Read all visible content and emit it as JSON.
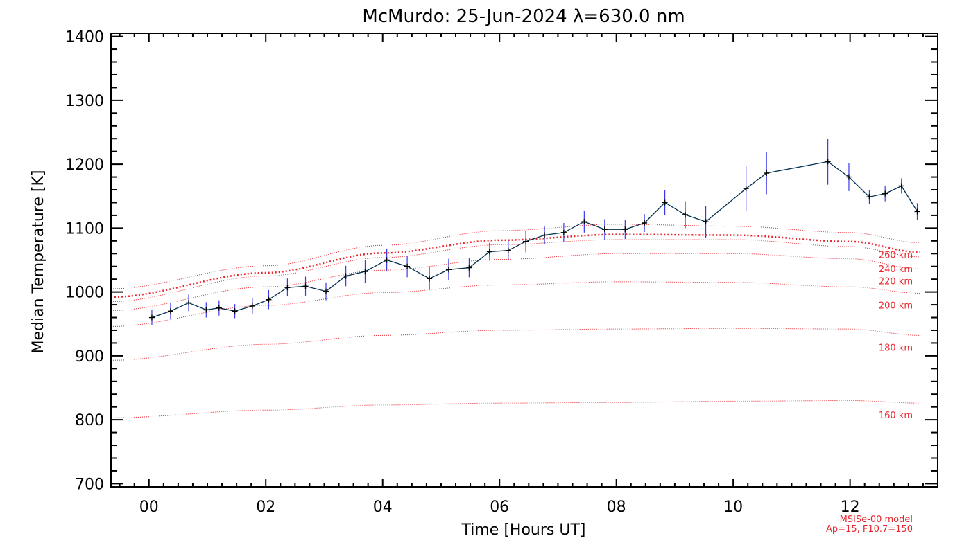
{
  "chart_data": {
    "type": "line",
    "title": "McMurdo: 25-Jun-2024 λ=630.0 nm",
    "xlabel": "Time [Hours UT]",
    "ylabel": "Median Temperature [K]",
    "xlim": [
      -0.65,
      13.5
    ],
    "ylim": [
      695,
      1405
    ],
    "x_tick_values": [
      0,
      2,
      4,
      6,
      8,
      10,
      12
    ],
    "x_tick_labels": [
      "00",
      "02",
      "04",
      "06",
      "08",
      "10",
      "12"
    ],
    "y_tick_values": [
      700,
      800,
      900,
      1000,
      1100,
      1200,
      1300,
      1400
    ],
    "y_tick_labels": [
      "700",
      "800",
      "900",
      "1000",
      "1100",
      "1200",
      "1300",
      "1400"
    ],
    "grid": false,
    "colors": {
      "data_line": "#003050",
      "marker": "#000000",
      "error_bar": "#3a3ae8",
      "model": "#e8262e"
    },
    "series": [
      {
        "x": [
          0.05,
          0.37,
          0.68,
          0.98,
          1.2,
          1.47,
          1.77,
          2.05,
          2.37,
          2.68,
          3.03,
          3.37,
          3.7,
          4.07,
          4.42,
          4.8,
          5.13,
          5.48,
          5.83,
          6.15,
          6.45,
          6.77,
          7.1,
          7.45,
          7.8,
          8.15,
          8.48,
          8.83,
          9.18,
          9.53,
          10.22,
          10.57,
          11.62,
          11.98,
          12.33,
          12.6,
          12.88,
          13.15
        ],
        "y": [
          960,
          970,
          983,
          972,
          975,
          970,
          978,
          988,
          1007,
          1009,
          1001,
          1025,
          1032,
          1050,
          1040,
          1021,
          1035,
          1038,
          1063,
          1065,
          1079,
          1089,
          1093,
          1110,
          1098,
          1098,
          1108,
          1140,
          1121,
          1110,
          1162,
          1186,
          1204,
          1180,
          1149,
          1154,
          1166,
          1126
        ],
        "error": [
          12,
          13,
          13,
          12,
          12,
          11,
          13,
          15,
          14,
          15,
          14,
          16,
          18,
          18,
          17,
          18,
          17,
          15,
          14,
          15,
          17,
          14,
          15,
          17,
          16,
          15,
          14,
          19,
          21,
          25,
          35,
          33,
          36,
          22,
          11,
          12,
          12,
          13
        ]
      }
    ],
    "model_curves": [
      {
        "name": "160 km",
        "x": [
          -0.65,
          2,
          4,
          6,
          8,
          10,
          12,
          13.2
        ],
        "y": [
          803,
          815,
          823,
          826,
          827,
          829,
          830,
          826
        ]
      },
      {
        "name": "180 km",
        "x": [
          -0.65,
          2,
          4,
          6,
          8,
          10,
          12,
          13.2
        ],
        "y": [
          893,
          918,
          932,
          940,
          942,
          943,
          942,
          932
        ]
      },
      {
        "name": "200 km",
        "x": [
          -0.65,
          2,
          4,
          6,
          8,
          10,
          12,
          13.2
        ],
        "y": [
          946,
          979,
          999,
          1011,
          1016,
          1015,
          1008,
          998
        ]
      },
      {
        "name": "220 km",
        "x": [
          -0.65,
          2,
          4,
          6,
          8,
          10,
          12,
          13.2
        ],
        "y": [
          971,
          1008,
          1034,
          1051,
          1060,
          1060,
          1052,
          1036
        ]
      },
      {
        "name": "240 km",
        "x": [
          -0.65,
          2,
          4,
          6,
          8,
          10,
          12,
          13.2
        ],
        "y": [
          985,
          1025,
          1054,
          1074,
          1082,
          1082,
          1071,
          1055
        ]
      },
      {
        "name": "260 km",
        "x": [
          -0.65,
          2,
          4,
          6,
          8,
          10,
          12,
          13.2
        ],
        "y": [
          1005,
          1041,
          1073,
          1096,
          1106,
          1103,
          1093,
          1077
        ]
      }
    ],
    "model_highlight": {
      "x": [
        -0.65,
        2,
        4,
        6,
        8,
        10,
        12,
        13.2
      ],
      "y": [
        992,
        1030,
        1061,
        1081,
        1090,
        1089,
        1079,
        1062
      ]
    },
    "model_note": [
      "MSISe-00 model",
      "Ap=15, F10.7=150"
    ]
  }
}
